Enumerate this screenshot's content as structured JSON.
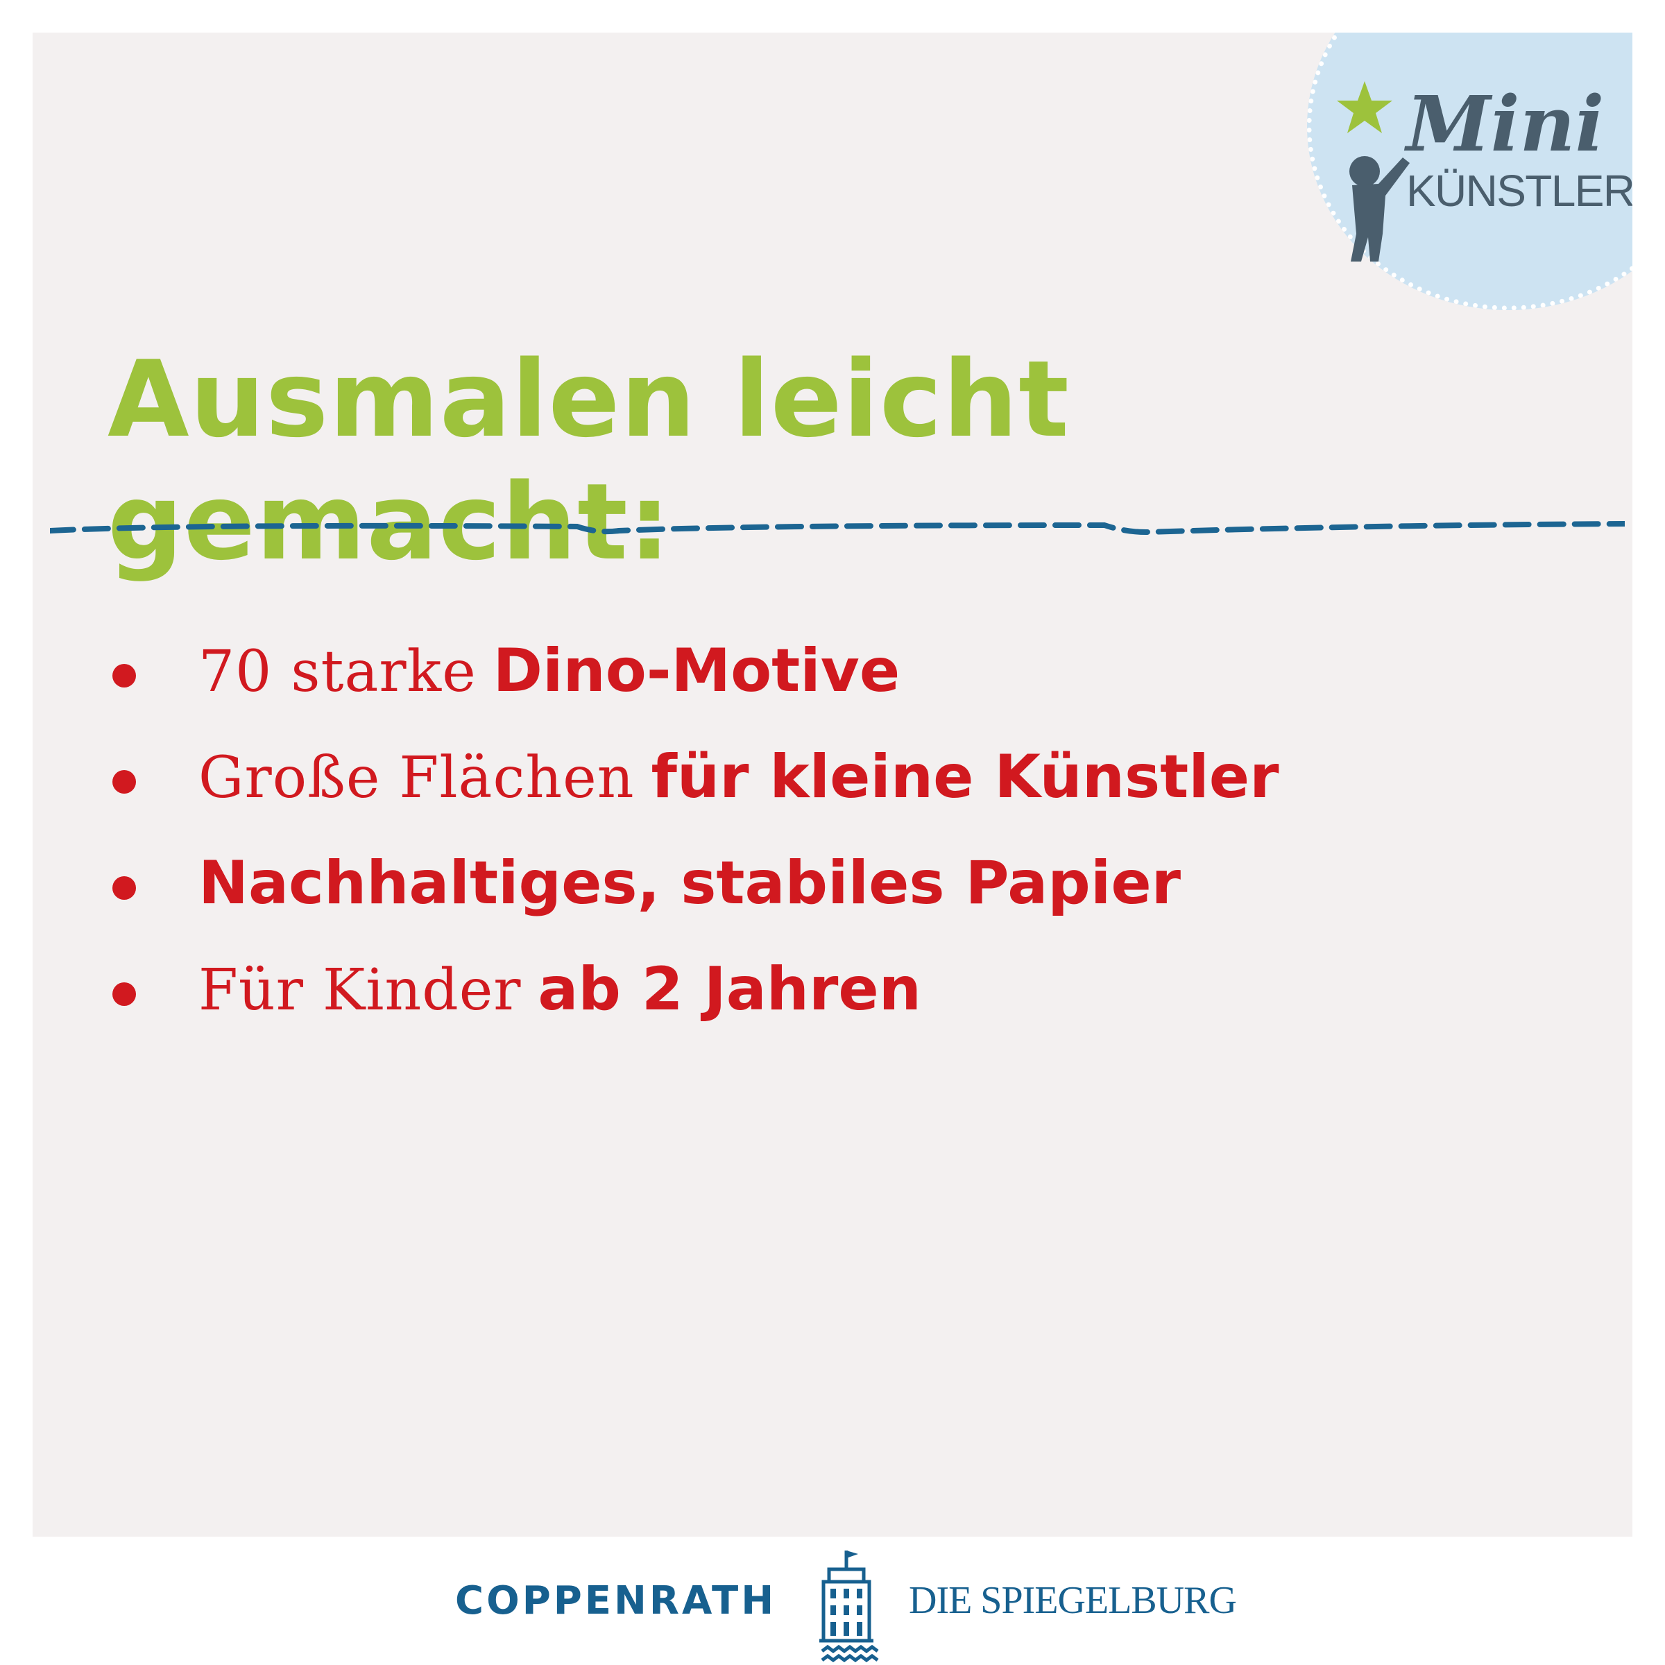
{
  "logo": {
    "line1": "Mini",
    "line2": "KÜNSTLER",
    "star_color": "#9dc23c",
    "badge_color": "#cde3f2"
  },
  "title": "Ausmalen leicht gemacht:",
  "bullets": [
    {
      "regular": "70 starke",
      "bold": "Dino-Motive"
    },
    {
      "regular": "Große Flächen",
      "bold": "für kleine Künstler"
    },
    {
      "regular": "",
      "bold": "Nachhaltiges, stabiles Papier"
    },
    {
      "regular": "Für Kinder",
      "bold": "ab 2 Jahren"
    }
  ],
  "footer": {
    "publisher": "COPPENRATH",
    "imprint": "DIE SPIEGELBURG"
  },
  "colors": {
    "title": "#9dc23c",
    "text": "#d1191f",
    "footer": "#17608f",
    "divider": "#1c6592"
  }
}
